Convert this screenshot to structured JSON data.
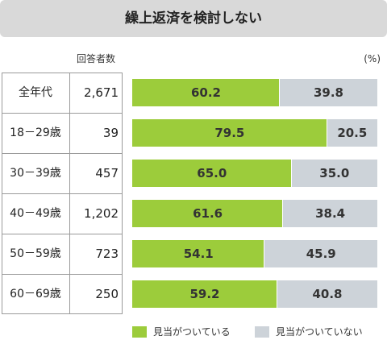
{
  "title": "繰上返済を検討しない",
  "count_header": "回答者数",
  "unit": "(%)",
  "legend": {
    "yes_label": "見当がついている",
    "no_label": "見当がついていない"
  },
  "colors": {
    "yes": "#9ccc3b",
    "no": "#cdd3d9"
  },
  "rows": [
    {
      "age": "全年代",
      "count": "2,671"
    },
    {
      "age": "18－29歳",
      "count": "39"
    },
    {
      "age": "30－39歳",
      "count": "457"
    },
    {
      "age": "40－49歳",
      "count": "1,202"
    },
    {
      "age": "50－59歳",
      "count": "723"
    },
    {
      "age": "60－69歳",
      "count": "250"
    }
  ],
  "chart_data": {
    "type": "bar",
    "stacked": true,
    "orientation": "horizontal",
    "title": "繰上返済を検討しない",
    "categories": [
      "全年代",
      "18－29歳",
      "30－39歳",
      "40－49歳",
      "50－59歳",
      "60－69歳"
    ],
    "respondents": [
      "2,671",
      "39",
      "457",
      "1,202",
      "723",
      "250"
    ],
    "series": [
      {
        "name": "見当がついている",
        "values": [
          60.2,
          79.5,
          65.0,
          61.6,
          54.1,
          59.2
        ],
        "labels": [
          "60.2",
          "79.5",
          "65.0",
          "61.6",
          "54.1",
          "59.2"
        ]
      },
      {
        "name": "見当がついていない",
        "values": [
          39.8,
          20.5,
          35.0,
          38.4,
          45.9,
          40.8
        ],
        "labels": [
          "39.8",
          "20.5",
          "35.0",
          "38.4",
          "45.9",
          "40.8"
        ]
      }
    ],
    "xlim": [
      0,
      100
    ],
    "unit": "(%)",
    "grid": false,
    "legend_position": "bottom-right"
  }
}
